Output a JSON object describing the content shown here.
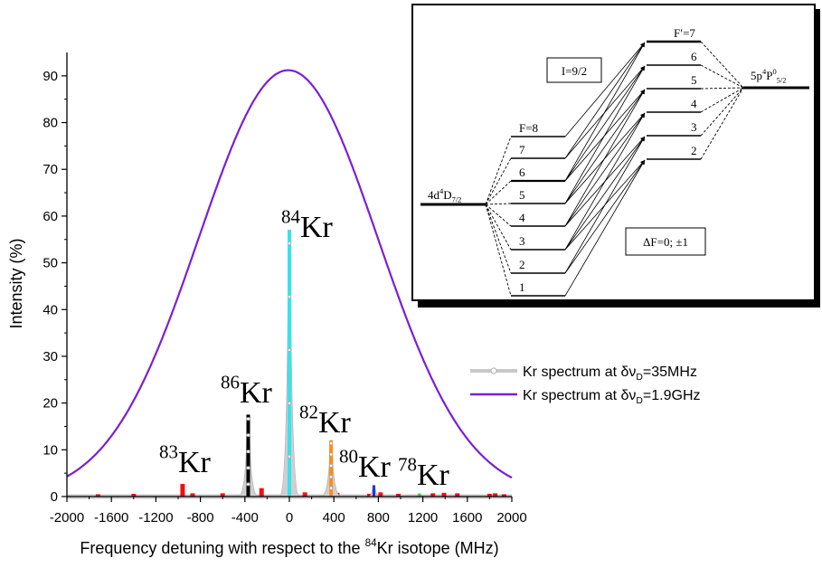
{
  "chart_data": {
    "type": "line",
    "title": "",
    "xlabel_prefix": "Frequency detuning with respect to the ",
    "xlabel_sup": "84",
    "xlabel_suffix": "Kr isotope (MHz)",
    "ylabel": "Intensity (%)",
    "xlim": [
      -2000,
      2000
    ],
    "ylim": [
      0,
      95
    ],
    "xticks": [
      -2000,
      -1600,
      -1200,
      -800,
      -400,
      0,
      400,
      800,
      1200,
      1600,
      2000
    ],
    "yticks": [
      0,
      10,
      20,
      30,
      40,
      50,
      60,
      70,
      80,
      90
    ],
    "broad_curve": {
      "center": -10,
      "sigma": 805,
      "amplitude": 91.2,
      "color": "#7a1fd6"
    },
    "narrow_peaks": [
      {
        "isotope": "86",
        "position": -370,
        "height": 17.5,
        "color": "#000000"
      },
      {
        "isotope": "84",
        "position": 0,
        "height": 57,
        "color": "#35e4ee"
      },
      {
        "isotope": "82",
        "position": 375,
        "height": 12,
        "color": "#ff8c1a"
      },
      {
        "isotope": "80",
        "position": 760,
        "height": 2.4,
        "color": "#1f35e0"
      },
      {
        "isotope": "78",
        "position": 1170,
        "height": 0.6,
        "color": "#27d22a"
      }
    ],
    "kr83_lines": [
      {
        "position": -1720,
        "height": 0.5
      },
      {
        "position": -1400,
        "height": 0.6
      },
      {
        "position": -960,
        "height": 2.7
      },
      {
        "position": -870,
        "height": 0.7
      },
      {
        "position": -600,
        "height": 0.7
      },
      {
        "position": -250,
        "height": 1.8
      },
      {
        "position": -25,
        "height": 0.6
      },
      {
        "position": 140,
        "height": 0.9
      },
      {
        "position": 430,
        "height": 0.8
      },
      {
        "position": 720,
        "height": 0.6
      },
      {
        "position": 820,
        "height": 0.9
      },
      {
        "position": 980,
        "height": 0.6
      },
      {
        "position": 1290,
        "height": 0.7
      },
      {
        "position": 1390,
        "height": 0.8
      },
      {
        "position": 1510,
        "height": 0.7
      },
      {
        "position": 1800,
        "height": 0.6
      },
      {
        "position": 1850,
        "height": 0.7
      },
      {
        "position": 1930,
        "height": 0.5
      }
    ],
    "kr83_color": "#ee1111",
    "isotope_labels": [
      {
        "mass": "83",
        "element": "Kr",
        "color": "#ee1111"
      },
      {
        "mass": "86",
        "element": "Kr",
        "color": "#000000"
      },
      {
        "mass": "84",
        "element": "Kr",
        "color": "#35e4ee"
      },
      {
        "mass": "82",
        "element": "Kr",
        "color": "#ff8c1a"
      },
      {
        "mass": "80",
        "element": "Kr",
        "color": "#1f35e0"
      },
      {
        "mass": "78",
        "element": "Kr",
        "color": "#27d22a"
      }
    ],
    "legend": [
      {
        "prefix": "Kr spectrum at δν",
        "sub": "D",
        "suffix": "=35MHz",
        "color": "#c8c8c8"
      },
      {
        "prefix": "Kr spectrum at δν",
        "sub": "D",
        "suffix": "=1.9GHz",
        "color": "#7a1fd6"
      }
    ]
  },
  "inset": {
    "lower_level": {
      "base": "4d",
      "sup": "4",
      "mid": "D",
      "sub": "7/2"
    },
    "upper_level": {
      "base": "5p",
      "sup": "4",
      "mid": "P",
      "sup2": "0",
      "sub": "5/2"
    },
    "nuclear_spin": "I=9/2",
    "selection_rule": "ΔF=0; ±1",
    "lower_F_labels": [
      "F=8",
      "7",
      "6",
      "5",
      "4",
      "3",
      "2",
      "1"
    ],
    "upper_F_labels": [
      "F′=7",
      "6",
      "5",
      "4",
      "3",
      "2"
    ]
  }
}
